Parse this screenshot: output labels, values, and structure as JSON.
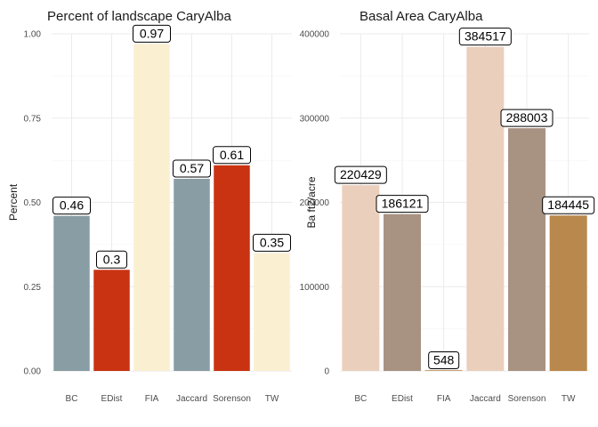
{
  "chart_data": [
    {
      "type": "bar",
      "title": "Percent of landscape  CaryAlba",
      "xlabel": "",
      "ylabel": "Percent",
      "categories": [
        "BC",
        "EDist",
        "FIA",
        "Jaccard",
        "Sorenson",
        "TW"
      ],
      "values": [
        0.46,
        0.3,
        0.97,
        0.57,
        0.61,
        0.35
      ],
      "value_labels": [
        "0.46",
        "0.3",
        "0.97",
        "0.57",
        "0.61",
        "0.35"
      ],
      "colors": [
        "#899DA4",
        "#C93312",
        "#FAEFD1",
        "#899DA4",
        "#C93312",
        "#FAEFD1"
      ],
      "ylim": [
        0,
        1.0
      ],
      "yticks": [
        0,
        0.25,
        0.5,
        0.75,
        1.0
      ],
      "ytick_labels": [
        "0.00",
        "0.25",
        "0.50",
        "0.75",
        "1.00"
      ],
      "grid": true,
      "legend": "none"
    },
    {
      "type": "bar",
      "title": "Basal Area  CaryAlba",
      "xlabel": "",
      "ylabel": "Ba ft2/acre",
      "categories": [
        "BC",
        "EDist",
        "FIA",
        "Jaccard",
        "Sorenson",
        "TW"
      ],
      "values": [
        220429,
        186121,
        548,
        384517,
        288003,
        184445
      ],
      "value_labels": [
        "220429",
        "186121",
        "548",
        "384517",
        "288003",
        "184445"
      ],
      "colors": [
        "#EBCFBD",
        "#A89383",
        "#B9884C",
        "#EBCFBD",
        "#A89383",
        "#B9884C"
      ],
      "ylim": [
        0,
        400000
      ],
      "yticks": [
        0,
        100000,
        200000,
        300000,
        400000
      ],
      "ytick_labels": [
        "0",
        "100000",
        "200000",
        "300000",
        "400000"
      ],
      "grid": true,
      "legend": "none"
    }
  ]
}
